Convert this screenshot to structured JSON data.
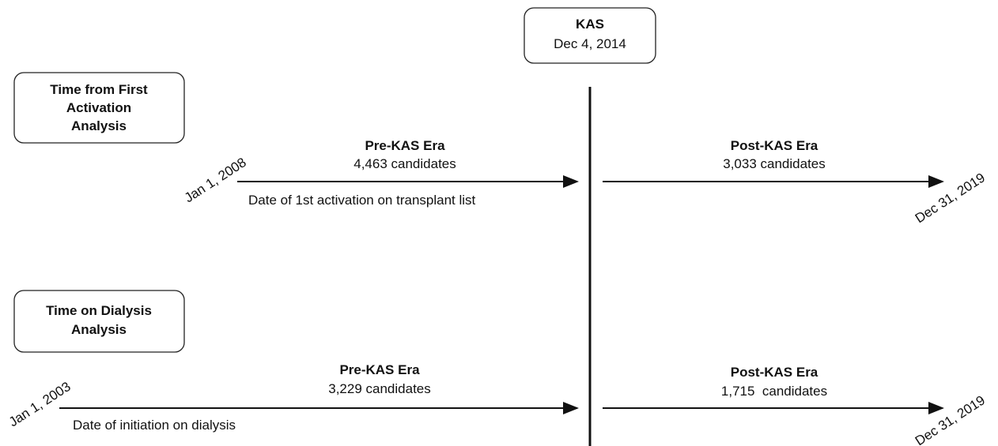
{
  "kas": {
    "title": "KAS",
    "date": "Dec 4, 2014"
  },
  "analyses": [
    {
      "label_lines": [
        "Time from First",
        "Activation",
        "Analysis"
      ],
      "start_date": "Jan 1, 2008",
      "end_date": "Dec 31, 2019",
      "pre": {
        "title": "Pre-KAS Era",
        "count": "4,463 candidates"
      },
      "post": {
        "title": "Post-KAS Era",
        "count": "3,033 candidates"
      },
      "axis_label": "Date of 1st activation on transplant list"
    },
    {
      "label_lines": [
        "Time on Dialysis",
        "Analysis"
      ],
      "start_date": "Jan 1, 2003",
      "end_date": "Dec 31, 2019",
      "pre": {
        "title": "Pre-KAS Era",
        "count": "3,229 candidates"
      },
      "post": {
        "title": "Post-KAS Era",
        "count": "1,715  candidates"
      },
      "axis_label": "Date of initiation on dialysis"
    }
  ]
}
